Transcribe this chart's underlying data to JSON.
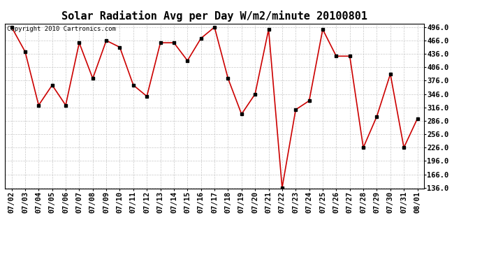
{
  "title": "Solar Radiation Avg per Day W/m2/minute 20100801",
  "copyright": "Copyright 2010 Cartronics.com",
  "dates": [
    "07/02",
    "07/03",
    "07/04",
    "07/05",
    "07/06",
    "07/07",
    "07/08",
    "07/09",
    "07/10",
    "07/11",
    "07/12",
    "07/13",
    "07/14",
    "07/15",
    "07/16",
    "07/17",
    "07/18",
    "07/19",
    "07/20",
    "07/21",
    "07/22",
    "07/23",
    "07/24",
    "07/25",
    "07/26",
    "07/27",
    "07/28",
    "07/29",
    "07/30",
    "07/31",
    "08/01"
  ],
  "values": [
    496,
    441,
    321,
    366,
    321,
    461,
    381,
    466,
    451,
    366,
    341,
    461,
    461,
    421,
    471,
    496,
    381,
    301,
    346,
    491,
    136,
    311,
    331,
    491,
    431,
    431,
    226,
    296,
    391,
    226,
    291
  ],
  "line_color": "#cc0000",
  "marker_color": "#000000",
  "bg_color": "#ffffff",
  "grid_color": "#c8c8c8",
  "ylim_min": 136.0,
  "ylim_max": 496.0,
  "ytick_values": [
    136.0,
    166.0,
    196.0,
    226.0,
    256.0,
    286.0,
    316.0,
    346.0,
    376.0,
    406.0,
    436.0,
    466.0,
    496.0
  ],
  "title_fontsize": 11,
  "copyright_fontsize": 6.5,
  "tick_fontsize": 7.5
}
